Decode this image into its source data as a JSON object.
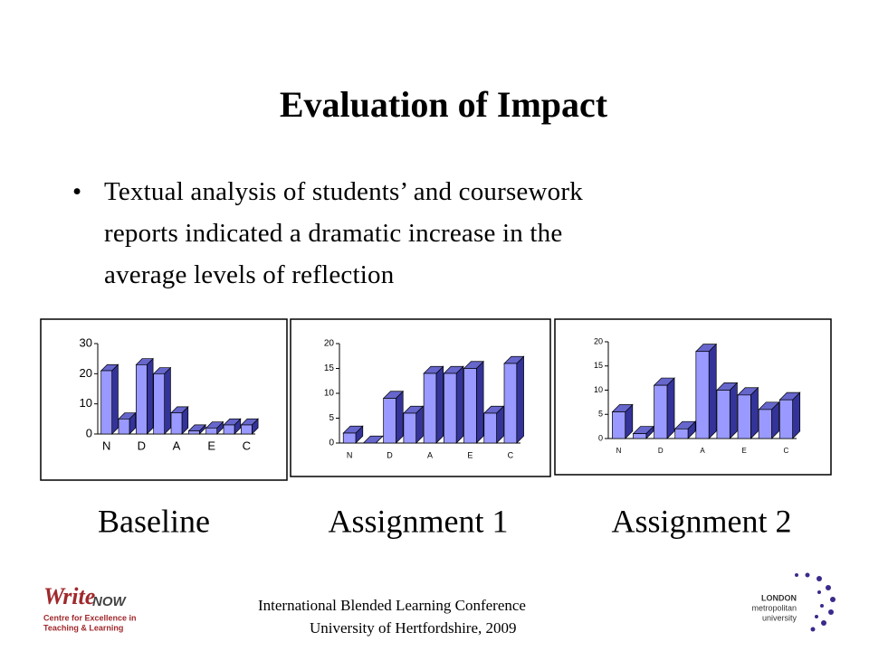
{
  "title": "Evaluation of Impact",
  "bullet": {
    "lines": [
      "Textual analysis of students’ and coursework",
      "reports indicated a dramatic increase in the",
      "average levels of reflection"
    ]
  },
  "chart_data": [
    {
      "type": "bar3d",
      "title": "Baseline",
      "categories": [
        "N",
        null,
        "D",
        null,
        "A",
        null,
        "E",
        null,
        "C"
      ],
      "values": [
        21,
        5,
        23,
        20,
        7,
        1,
        2,
        3,
        3
      ],
      "color": "#9999ff",
      "ylim": [
        0,
        30
      ],
      "yticks": [
        0,
        10,
        20,
        30
      ]
    },
    {
      "type": "bar3d",
      "title": "Assignment 1",
      "categories": [
        "N",
        null,
        "D",
        null,
        "A",
        null,
        "E",
        null,
        "C"
      ],
      "values": [
        2,
        0,
        9,
        6,
        14,
        14,
        15,
        6,
        16
      ],
      "color": "#9999ff",
      "ylim": [
        0,
        20
      ],
      "yticks": [
        0,
        5,
        10,
        15,
        20
      ]
    },
    {
      "type": "bar3d",
      "title": "Assignment 2",
      "categories": [
        "N",
        null,
        "D",
        null,
        "A",
        null,
        "E",
        null,
        "C"
      ],
      "values": [
        5.5,
        1,
        11,
        2,
        18,
        10,
        9,
        6,
        8
      ],
      "color": "#9999ff",
      "ylim": [
        0,
        20
      ],
      "yticks": [
        0,
        5,
        10,
        15,
        20
      ]
    }
  ],
  "footer": {
    "line1": "International Blended Learning Conference",
    "line2": "University of Hertfordshire, 2009"
  },
  "logos": {
    "left": {
      "name": "Write",
      "suffix": "NOW",
      "caption": [
        "Centre for Excellence in",
        "Teaching & Learning"
      ]
    },
    "right": {
      "lines": [
        "LONDON",
        "metropolitan",
        "university"
      ]
    }
  }
}
